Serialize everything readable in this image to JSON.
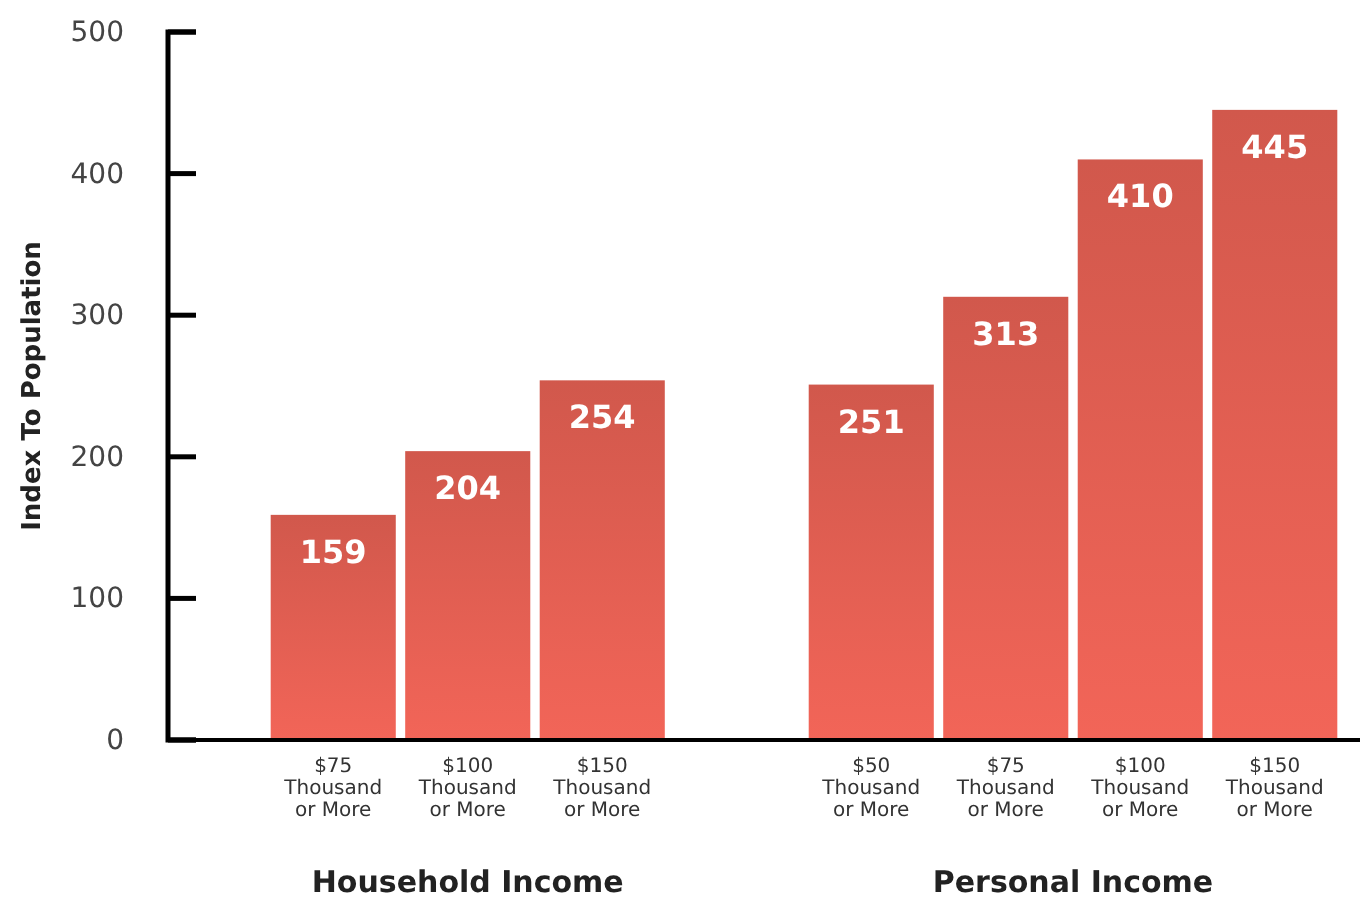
{
  "chart_data": {
    "type": "bar",
    "ylabel": "Index To Population",
    "categories": [
      "$75\nThousand\nor More",
      "$100\nThousand\nor More",
      "$150\nThousand\nor More",
      null,
      "$50\nThousand\nor More",
      "$75\nThousand\nor More",
      "$100\nThousand\nor More",
      "$150\nThousand\nor More"
    ],
    "values": [
      159,
      204,
      254,
      null,
      251,
      313,
      410,
      445
    ],
    "color": "#d95b4f",
    "ylim": [
      0,
      500
    ],
    "yticks": [
      0,
      100,
      200,
      300,
      400,
      500
    ],
    "data_labels": true,
    "annotations": [
      "Household Income",
      "Personal Income"
    ]
  }
}
